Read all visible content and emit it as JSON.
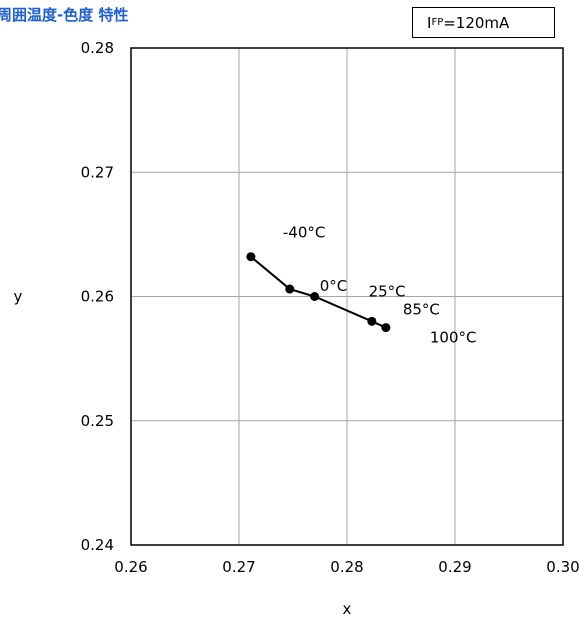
{
  "header": {
    "title": "周囲温度-色度 特性",
    "condition": {
      "main": "I",
      "subscript": "FP",
      "value": "=120mA"
    }
  },
  "chart_data": {
    "type": "line",
    "title": "周囲温度-色度 特性",
    "xlabel": "x",
    "ylabel": "y",
    "xlim": [
      0.26,
      0.3
    ],
    "ylim": [
      0.24,
      0.28
    ],
    "x_ticks": [
      "0.26",
      "0.27",
      "0.28",
      "0.29",
      "0.30"
    ],
    "y_ticks": [
      "0.24",
      "0.25",
      "0.26",
      "0.27",
      "0.28"
    ],
    "grid": true,
    "series": [
      {
        "points": [
          {
            "label": "-40°C",
            "x": 0.2711,
            "y": 0.2632
          },
          {
            "label": "0°C",
            "x": 0.2747,
            "y": 0.2606
          },
          {
            "label": "25°C",
            "x": 0.277,
            "y": 0.26
          },
          {
            "label": "85°C",
            "x": 0.2823,
            "y": 0.258
          },
          {
            "label": "100°C",
            "x": 0.2836,
            "y": 0.2575
          }
        ]
      }
    ],
    "line_color": "#000000",
    "title_color": "#1f5fd6"
  }
}
